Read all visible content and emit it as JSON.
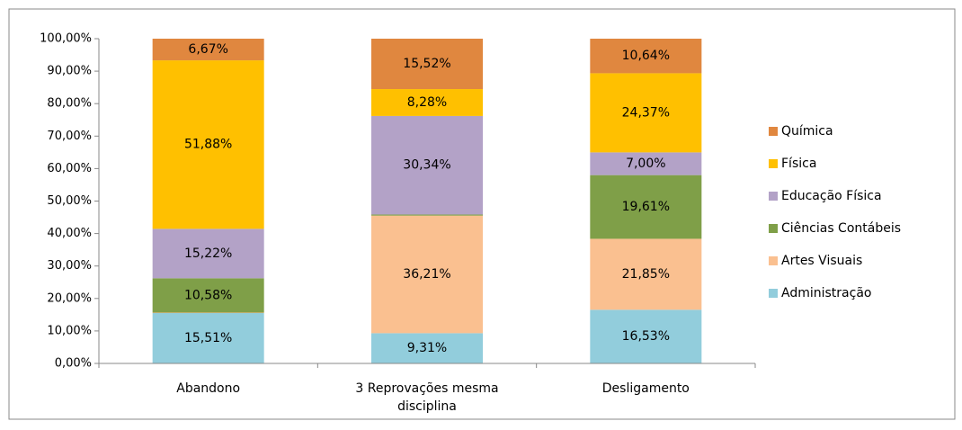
{
  "chart_data": {
    "type": "stacked_bar",
    "categories": [
      "Abandono",
      "3 Reprovações mesma disciplina",
      "Desligamento"
    ],
    "series": [
      {
        "name": "Administração",
        "color": "#92cddc",
        "values": [
          15.51,
          9.31,
          16.53
        ],
        "value_labels": [
          "15,51%",
          "9,31%",
          "16,53%"
        ]
      },
      {
        "name": "Artes Visuais",
        "color": "#fac090",
        "values": [
          0.14,
          36.21,
          21.85
        ],
        "value_labels": [
          null,
          "36,21%",
          "21,85%"
        ]
      },
      {
        "name": "Ciências Contábeis",
        "color": "#7f9f48",
        "values": [
          10.58,
          0.34,
          19.61
        ],
        "value_labels": [
          "10,58%",
          null,
          "19,61%"
        ]
      },
      {
        "name": "Educação Física",
        "color": "#b3a2c7",
        "values": [
          15.22,
          30.34,
          7.0
        ],
        "value_labels": [
          "15,22%",
          "30,34%",
          "7,00%"
        ]
      },
      {
        "name": "Física",
        "color": "#ffc000",
        "values": [
          51.88,
          8.28,
          24.37
        ],
        "value_labels": [
          "51,88%",
          "8,28%",
          "24,37%"
        ]
      },
      {
        "name": "Química",
        "color": "#e0873f",
        "values": [
          6.67,
          15.52,
          10.64
        ],
        "value_labels": [
          "6,67%",
          "15,52%",
          "10,64%"
        ]
      }
    ],
    "ylim": [
      0,
      100
    ],
    "yticks": [
      {
        "value": 0,
        "label": "0,00%"
      },
      {
        "value": 10,
        "label": "10,00%"
      },
      {
        "value": 20,
        "label": "20,00%"
      },
      {
        "value": 30,
        "label": "30,00%"
      },
      {
        "value": 40,
        "label": "40,00%"
      },
      {
        "value": 50,
        "label": "50,00%"
      },
      {
        "value": 60,
        "label": "60,00%"
      },
      {
        "value": 70,
        "label": "70,00%"
      },
      {
        "value": 80,
        "label": "80,00%"
      },
      {
        "value": 90,
        "label": "90,00%"
      },
      {
        "value": 100,
        "label": "100,00%"
      }
    ],
    "legend": "right"
  }
}
